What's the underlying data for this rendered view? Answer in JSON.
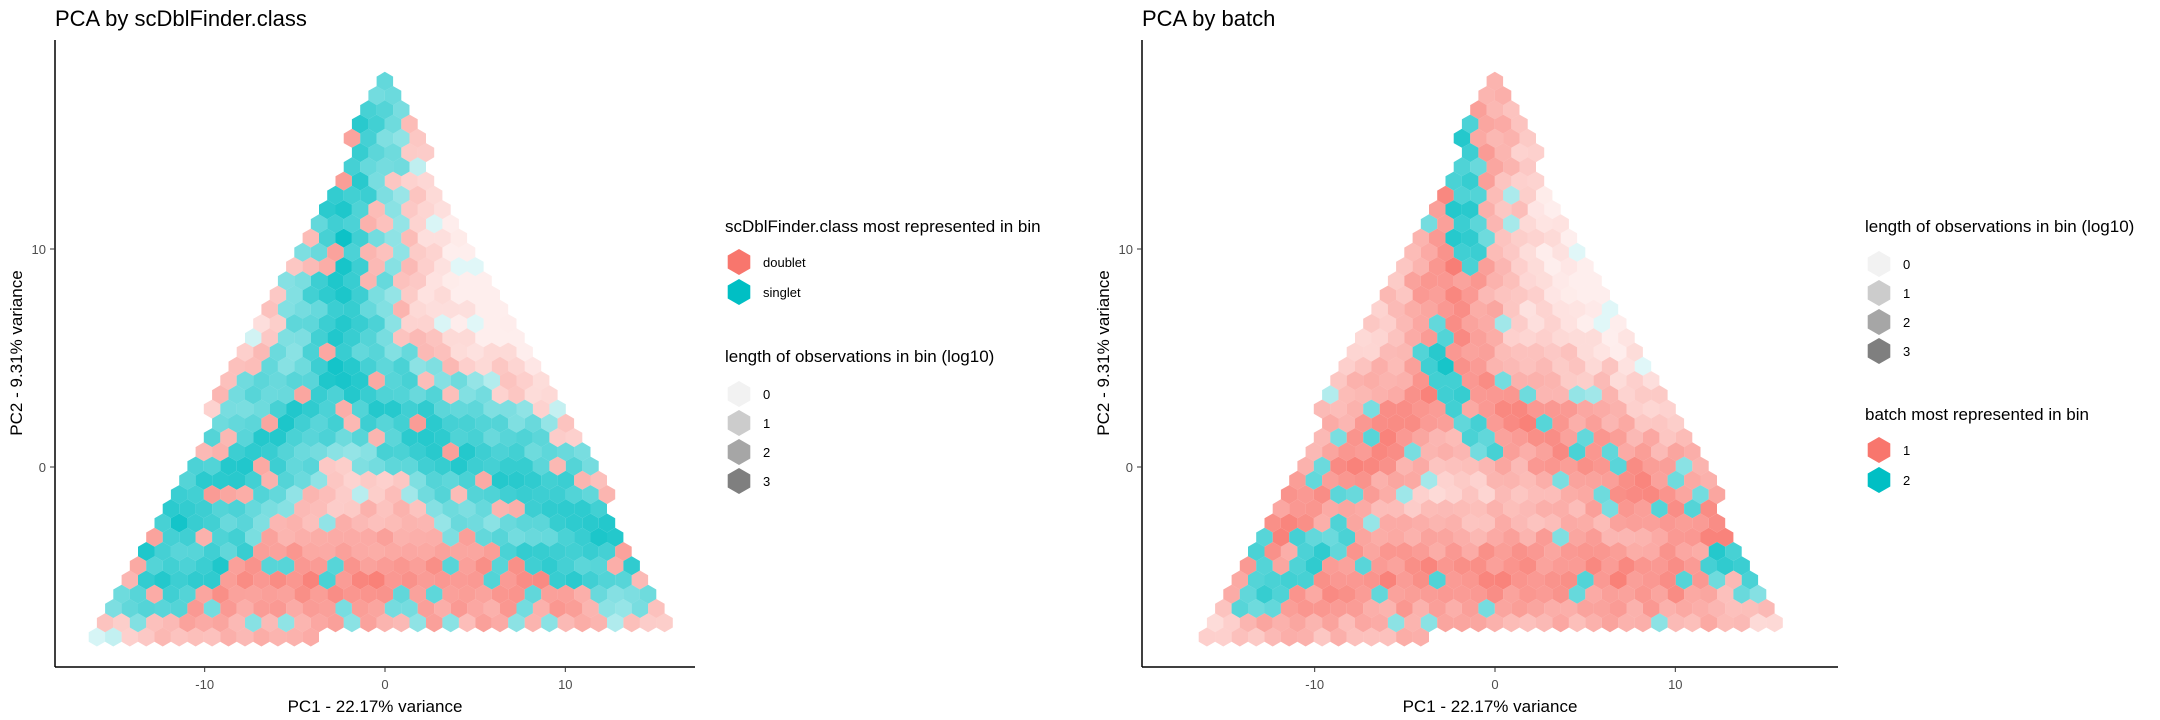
{
  "chart_data": [
    {
      "type": "hexbin",
      "title": "PCA by scDblFinder.class",
      "xlabel": "PC1 - 22.17% variance",
      "ylabel": "PC2 - 9.31% variance",
      "xlim": [
        -18,
        17
      ],
      "ylim": [
        -9,
        20
      ],
      "xticks": [
        -10,
        0,
        10
      ],
      "yticks": [
        0,
        10
      ],
      "grid": false,
      "color_legend": {
        "title": "scDblFinder.class most represented in bin",
        "entries": [
          {
            "label": "doublet",
            "color": "#F8766D"
          },
          {
            "label": "singlet",
            "color": "#00BFC4"
          }
        ]
      },
      "alpha_legend": {
        "title": "length of observations in bin (log10)",
        "entries": [
          "0",
          "1",
          "2",
          "3"
        ]
      },
      "legend_order": [
        "color",
        "alpha"
      ],
      "pattern": "class"
    },
    {
      "type": "hexbin",
      "title": "PCA by batch",
      "xlabel": "PC1 - 22.17% variance",
      "ylabel": "PC2 - 9.31% variance",
      "xlim": [
        -18,
        17
      ],
      "ylim": [
        -9,
        20
      ],
      "xticks": [
        -10,
        0,
        10
      ],
      "yticks": [
        0,
        10
      ],
      "grid": false,
      "color_legend": {
        "title": "batch most represented in bin",
        "entries": [
          {
            "label": "1",
            "color": "#F8766D"
          },
          {
            "label": "2",
            "color": "#00BFC4"
          }
        ]
      },
      "alpha_legend": {
        "title": "length of observations in bin (log10)",
        "entries": [
          "0",
          "1",
          "2",
          "3"
        ]
      },
      "legend_order": [
        "alpha",
        "color"
      ],
      "pattern": "batch"
    }
  ]
}
